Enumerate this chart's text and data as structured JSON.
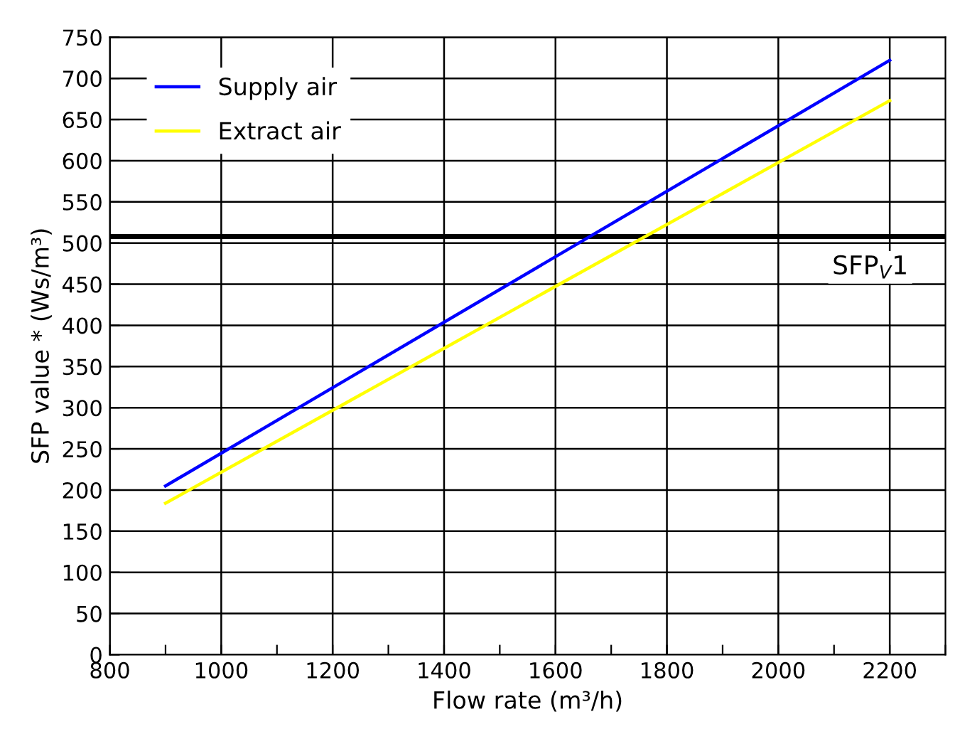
{
  "chart_data": {
    "type": "line",
    "xlabel": "Flow rate (m³/h)",
    "ylabel": "SFP value * (Ws/m³)",
    "x": [
      900,
      2200
    ],
    "series": [
      {
        "name": "Supply air",
        "color": "#0000ff",
        "values": [
          205,
          722
        ]
      },
      {
        "name": "Extract air",
        "color": "#ffff00",
        "values": [
          184,
          673
        ]
      }
    ],
    "xlim": [
      800,
      2300
    ],
    "xticks": [
      800,
      {
        "value": 900,
        "label": null
      },
      1000,
      {
        "value": 1100,
        "label": null
      },
      1200,
      {
        "value": 1300,
        "label": null
      },
      1400,
      {
        "value": 1500,
        "label": null
      },
      1600,
      {
        "value": 1700,
        "label": null
      },
      1800,
      {
        "value": 1900,
        "label": null
      },
      2000,
      {
        "value": 2100,
        "label": null
      },
      2200,
      {
        "value": 2300,
        "label": null
      }
    ],
    "ylim": [
      0,
      750
    ],
    "yticks": [
      0,
      50,
      100,
      150,
      200,
      250,
      300,
      350,
      400,
      450,
      500,
      550,
      600,
      650,
      700,
      750
    ],
    "ref_lines": [
      {
        "axis": "y",
        "value": 508,
        "label": "SFP$_{V}$1",
        "color": "#000000",
        "line_style": "solid"
      }
    ],
    "grid": true,
    "legend": "top left",
    "marker": "none",
    "line_style": "solid"
  }
}
